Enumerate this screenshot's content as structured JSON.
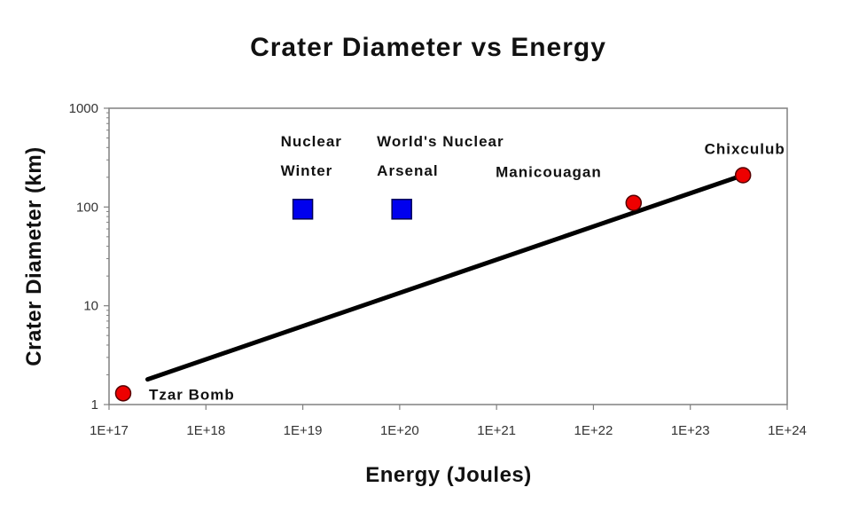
{
  "chart_data": {
    "type": "scatter",
    "title": "Crater Diameter vs Energy",
    "xlabel": "Energy (Joules)",
    "ylabel": "Crater Diameter (km)",
    "x_scale": "log",
    "y_scale": "log",
    "xlim": [
      1e+17,
      1e+24
    ],
    "ylim": [
      1,
      1000
    ],
    "x_tick_labels": [
      "1E+17",
      "1E+18",
      "1E+19",
      "1E+20",
      "1E+21",
      "1E+22",
      "1E+23",
      "1E+24"
    ],
    "y_tick_labels": [
      "1",
      "10",
      "100",
      "1000"
    ],
    "grid": false,
    "legend": "none",
    "trend_line": {
      "x": [
        2.5e+17,
        3.5e+23
      ],
      "y": [
        1.8,
        210
      ],
      "color": "#000000"
    },
    "series": [
      {
        "marker": "circle",
        "color": "#ee0000",
        "points": [
          {
            "label": "Tzar Bomb",
            "x": 1.4e+17,
            "y": 1.3
          },
          {
            "label": "Manicouagan",
            "x": 2.6e+22,
            "y": 110
          },
          {
            "label": "Chixculub",
            "x": 3.5e+23,
            "y": 210
          }
        ]
      },
      {
        "marker": "square",
        "color": "#0000ee",
        "points": [
          {
            "label_lines": [
              "Nuclear",
              "Winter"
            ],
            "x": 1e+19,
            "y": 95
          },
          {
            "label_lines": [
              "World's Nuclear",
              "Arsenal"
            ],
            "x": 1.05e+20,
            "y": 95
          }
        ]
      }
    ]
  }
}
